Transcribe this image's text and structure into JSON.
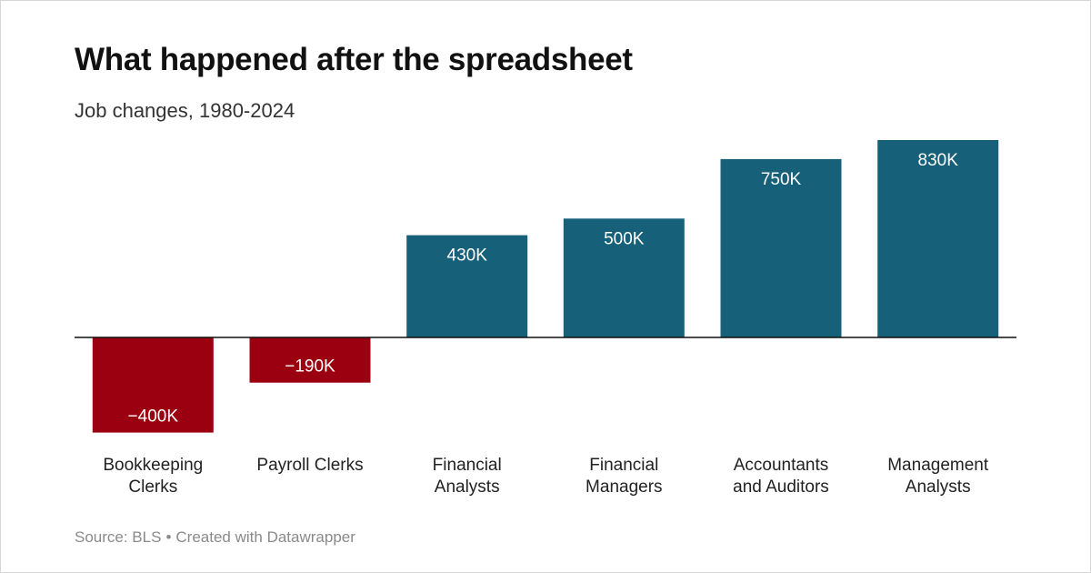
{
  "header": {
    "title": "What happened after the spreadsheet",
    "subtitle": "Job changes, 1980-2024"
  },
  "footer": {
    "source": "Source: BLS",
    "separator": "•",
    "credit": "Created with Datawrapper"
  },
  "colors": {
    "positive": "#17607a",
    "negative": "#9b0010",
    "baseline": "#111111",
    "label_on_bar": "#ffffff",
    "category_text": "#222222"
  },
  "chart_data": {
    "type": "bar",
    "title": "What happened after the spreadsheet",
    "subtitle": "Job changes, 1980-2024",
    "xlabel": "",
    "ylabel": "",
    "grid": false,
    "categories": [
      [
        "Bookkeeping",
        "Clerks"
      ],
      [
        "Payroll Clerks"
      ],
      [
        "Financial",
        "Analysts"
      ],
      [
        "Financial",
        "Managers"
      ],
      [
        "Accountants",
        "and Auditors"
      ],
      [
        "Management",
        "Analysts"
      ]
    ],
    "values": [
      -400000,
      -190000,
      430000,
      500000,
      750000,
      830000
    ],
    "value_labels": [
      "−400K",
      "−190K",
      "430K",
      "500K",
      "750K",
      "830K"
    ],
    "ylim": [
      -400000,
      830000
    ]
  }
}
